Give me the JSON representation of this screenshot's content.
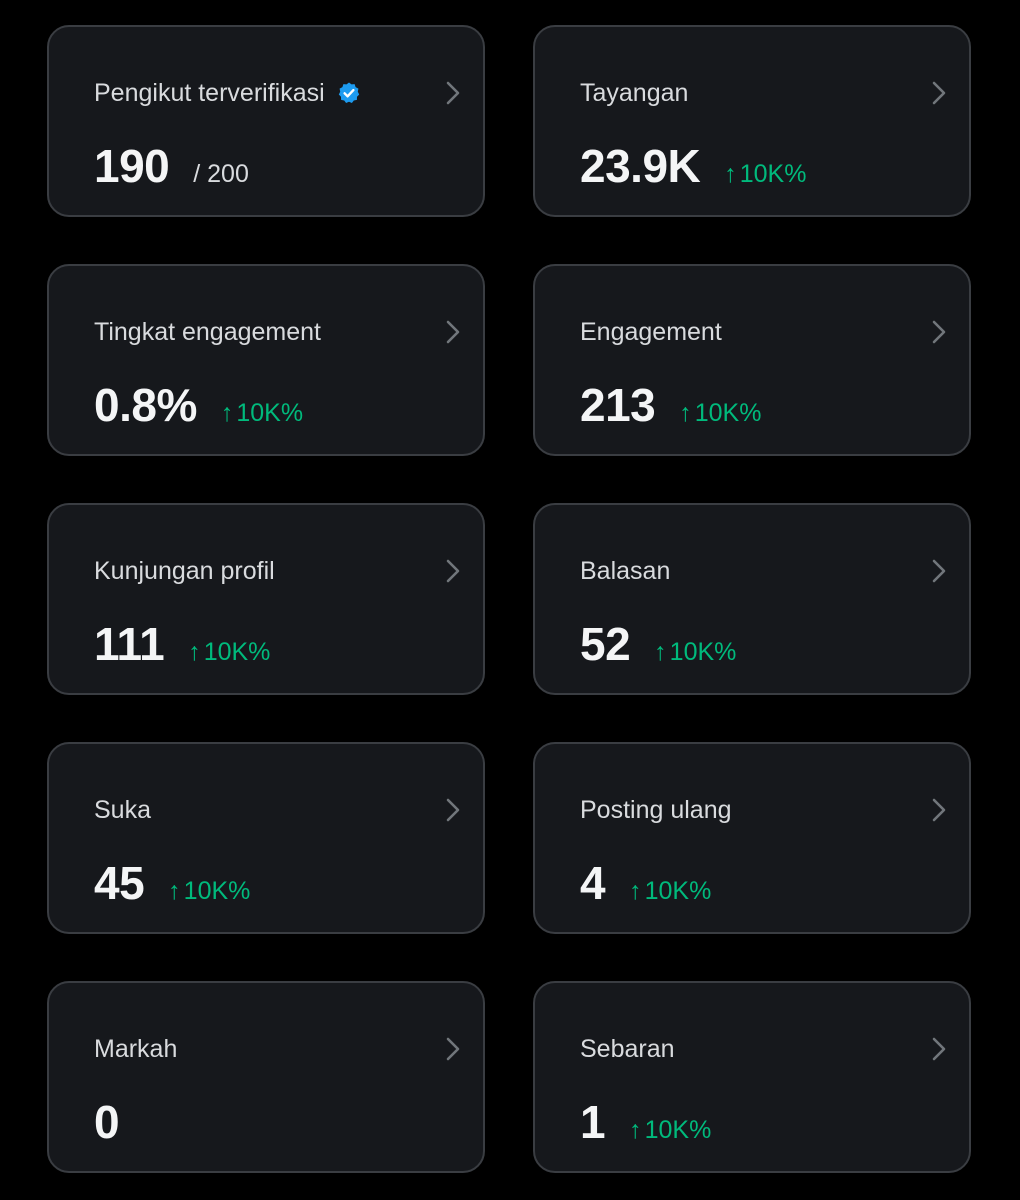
{
  "colors": {
    "background": "#000000",
    "card": "#16181c",
    "card_border": "#3a3d42",
    "positive": "#00ba7c",
    "verified": "#1d9bf0",
    "chevron": "#71767b"
  },
  "cards": [
    {
      "title": "Pengikut terverifikasi",
      "value": "190",
      "sub": "/ 200",
      "delta": "",
      "verified": true
    },
    {
      "title": "Tayangan",
      "value": "23.9K",
      "sub": "",
      "delta": "10K%",
      "verified": false
    },
    {
      "title": "Tingkat engagement",
      "value": "0.8%",
      "sub": "",
      "delta": "10K%",
      "verified": false
    },
    {
      "title": "Engagement",
      "value": "213",
      "sub": "",
      "delta": "10K%",
      "verified": false
    },
    {
      "title": "Kunjungan profil",
      "value": "111",
      "sub": "",
      "delta": "10K%",
      "verified": false
    },
    {
      "title": "Balasan",
      "value": "52",
      "sub": "",
      "delta": "10K%",
      "verified": false
    },
    {
      "title": "Suka",
      "value": "45",
      "sub": "",
      "delta": "10K%",
      "verified": false
    },
    {
      "title": "Posting ulang",
      "value": "4",
      "sub": "",
      "delta": "10K%",
      "verified": false
    },
    {
      "title": "Markah",
      "value": "0",
      "sub": "",
      "delta": "",
      "verified": false
    },
    {
      "title": "Sebaran",
      "value": "1",
      "sub": "",
      "delta": "10K%",
      "verified": false
    }
  ]
}
